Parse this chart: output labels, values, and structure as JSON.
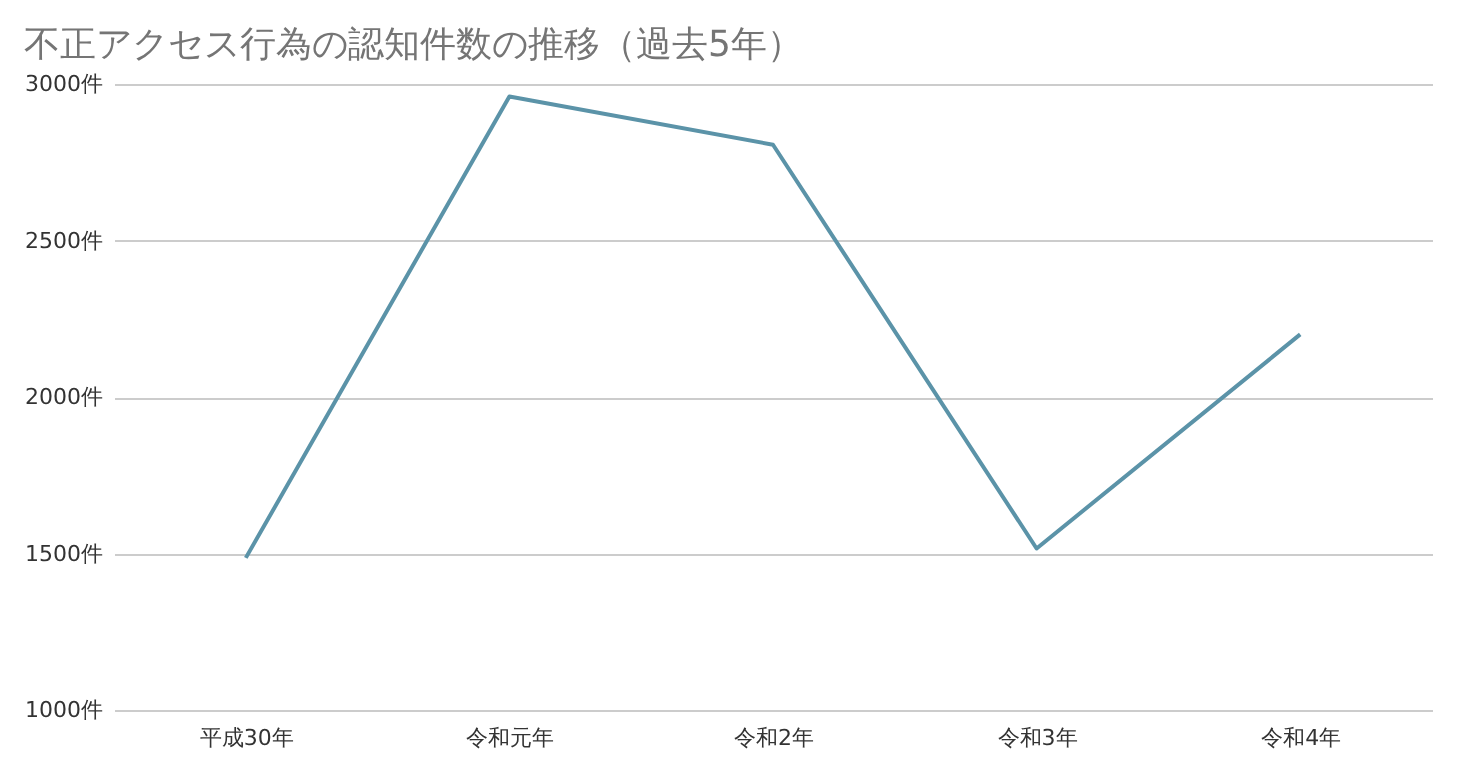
{
  "chart_data": {
    "type": "line",
    "title": "不正アクセス行為の認知件数の推移（過去5年）",
    "categories": [
      "平成30年",
      "令和元年",
      "令和2年",
      "令和3年",
      "令和4年"
    ],
    "series": [
      {
        "color": "#5b93a8",
        "values": [
          1486,
          2960,
          2806,
          1516,
          2200
        ]
      }
    ],
    "ylim": [
      1000,
      3000
    ],
    "yticks": [
      {
        "value": 1000,
        "label": "1000件"
      },
      {
        "value": 1500,
        "label": "1500件"
      },
      {
        "value": 2000,
        "label": "2000件"
      },
      {
        "value": 2500,
        "label": "2500件"
      },
      {
        "value": 3000,
        "label": "3000件"
      }
    ],
    "grid": "y",
    "legend": false,
    "marker": "none",
    "line_style": "solid"
  }
}
